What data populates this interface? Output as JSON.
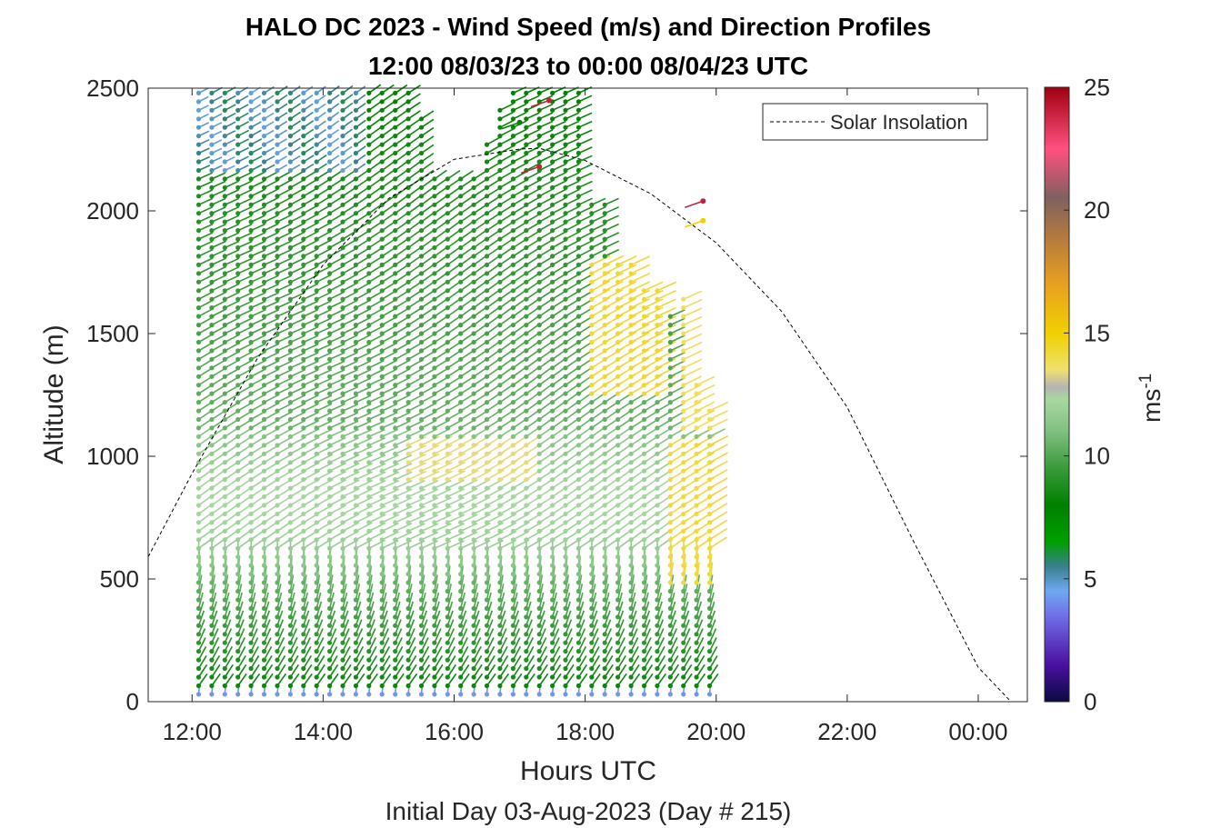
{
  "chart_data": {
    "type": "scatter",
    "title_line1": "HALO DC 2023 - Wind Speed (m/s) and Direction Profiles",
    "title_line2": "12:00 08/03/23 to 00:00 08/04/23  UTC",
    "xlabel": "Hours UTC",
    "xlabel2": "Initial Day 03-Aug-2023 (Day # 215)",
    "ylabel": "Altitude (m)",
    "colorbar_label": "ms",
    "colorbar_label_sup": "-1",
    "x_ticks": [
      {
        "value": 12,
        "label": "12:00"
      },
      {
        "value": 14,
        "label": "14:00"
      },
      {
        "value": 16,
        "label": "16:00"
      },
      {
        "value": 18,
        "label": "18:00"
      },
      {
        "value": 20,
        "label": "20:00"
      },
      {
        "value": 22,
        "label": "22:00"
      },
      {
        "value": 24,
        "label": "00:00"
      }
    ],
    "y_ticks": [
      {
        "value": 0,
        "label": "0"
      },
      {
        "value": 500,
        "label": "500"
      },
      {
        "value": 1000,
        "label": "1000"
      },
      {
        "value": 1500,
        "label": "1500"
      },
      {
        "value": 2000,
        "label": "2000"
      },
      {
        "value": 2500,
        "label": "2500"
      }
    ],
    "colorbar_ticks": [
      {
        "value": 0,
        "label": "0"
      },
      {
        "value": 5,
        "label": "5"
      },
      {
        "value": 10,
        "label": "10"
      },
      {
        "value": 15,
        "label": "15"
      },
      {
        "value": 20,
        "label": "20"
      },
      {
        "value": 25,
        "label": "25"
      }
    ],
    "xlim": [
      11.33,
      24.75
    ],
    "ylim": [
      0,
      2500
    ],
    "clim": [
      0,
      25
    ],
    "colormap": [
      {
        "value": 0,
        "color": "#0a0a40"
      },
      {
        "value": 1.5,
        "color": "#4a10a0"
      },
      {
        "value": 3.5,
        "color": "#7070e8"
      },
      {
        "value": 4.5,
        "color": "#70a8f0"
      },
      {
        "value": 5.5,
        "color": "#3a7f8f"
      },
      {
        "value": 6.5,
        "color": "#00a000"
      },
      {
        "value": 8,
        "color": "#008000"
      },
      {
        "value": 9.5,
        "color": "#3a9a3a"
      },
      {
        "value": 11,
        "color": "#80c080"
      },
      {
        "value": 12.3,
        "color": "#a8d8a0"
      },
      {
        "value": 12.8,
        "color": "#b4b4b4"
      },
      {
        "value": 13.5,
        "color": "#f0e070"
      },
      {
        "value": 15,
        "color": "#f0d000"
      },
      {
        "value": 17,
        "color": "#e8a020"
      },
      {
        "value": 19,
        "color": "#b07840"
      },
      {
        "value": 20.5,
        "color": "#806060"
      },
      {
        "value": 22.5,
        "color": "#ff5080"
      },
      {
        "value": 25,
        "color": "#a00010"
      }
    ],
    "legend": {
      "label": "Solar Insolation",
      "position": "top-right"
    },
    "solar_insolation": {
      "x": [
        11.33,
        12,
        13,
        14,
        15,
        16,
        17,
        17.3,
        18,
        19,
        20,
        21,
        22,
        23,
        24,
        24.5
      ],
      "y": [
        590,
        930,
        1400,
        1780,
        2050,
        2210,
        2252,
        2255,
        2205,
        2070,
        1870,
        1590,
        1200,
        660,
        140,
        0
      ]
    },
    "profiles": {
      "times_start": 12.1,
      "times_step": 0.2,
      "count": 40,
      "altitude_step": 35,
      "points_note": "Each profile: wind barbs from near 30 m up to its top altitude",
      "tops": [
        2490,
        2490,
        2490,
        2490,
        2490,
        2490,
        2490,
        2490,
        2490,
        2490,
        2490,
        2490,
        2490,
        2490,
        2490,
        2490,
        2490,
        2380,
        2150,
        2150,
        2150,
        2150,
        2300,
        2440,
        2490,
        2490,
        2490,
        2490,
        2490,
        2490,
        2050,
        2050,
        1800,
        1800,
        1700,
        1700,
        1600,
        1650,
        1300,
        1200
      ],
      "outliers": [
        {
          "x": 17.45,
          "y": 2450,
          "speed": 24
        },
        {
          "x": 17.0,
          "y": 2360,
          "speed": 8
        },
        {
          "x": 17.3,
          "y": 2180,
          "speed": 24
        },
        {
          "x": 19.8,
          "y": 2040,
          "speed": 24
        },
        {
          "x": 19.8,
          "y": 1960,
          "speed": 15
        }
      ]
    }
  }
}
